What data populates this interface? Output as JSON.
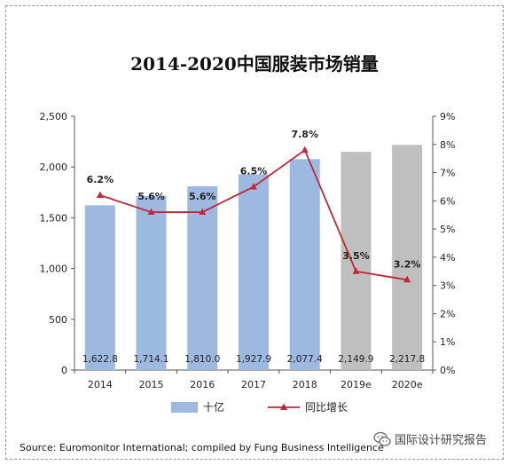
{
  "title": "2014-2020中国服装市场销量",
  "source": "Source: Euromonitor International; compiled by Fung Business Intelligence",
  "watermark": "国际设计研究报告",
  "chart_data": {
    "type": "bar",
    "categories": [
      "2014",
      "2015",
      "2016",
      "2017",
      "2018",
      "2019e",
      "2020e"
    ],
    "series": [
      {
        "name": "十亿",
        "type": "bar",
        "axis": "left",
        "values": [
          1622.8,
          1714.1,
          1810.0,
          1927.9,
          2077.4,
          2149.9,
          2217.8
        ],
        "labels": [
          "1,622.8",
          "1,714.1",
          "1,810.0",
          "1,927.9",
          "2,077.4",
          "2,149.9",
          "2,217.8"
        ],
        "colors": [
          "#9db9e0",
          "#9db9e0",
          "#9db9e0",
          "#9db9e0",
          "#9db9e0",
          "#bfbfbf",
          "#bfbfbf"
        ]
      },
      {
        "name": "同比增长",
        "type": "line",
        "axis": "right",
        "values": [
          6.2,
          5.6,
          5.6,
          6.5,
          7.8,
          3.5,
          3.2
        ],
        "labels": [
          "6.2%",
          "5.6%",
          "5.6%",
          "6.5%",
          "7.8%",
          "3.5%",
          "3.2%"
        ],
        "color": "#c0283a"
      }
    ],
    "ylim": [
      0,
      2500
    ],
    "yticks": [
      "0",
      "500",
      "1,000",
      "1,500",
      "2,000",
      "2,500"
    ],
    "ylim_right": [
      0,
      9
    ],
    "yticks_right": [
      "0%",
      "1%",
      "2%",
      "3%",
      "4%",
      "5%",
      "6%",
      "7%",
      "8%",
      "9%"
    ],
    "grid": false,
    "legend_position": "bottom"
  }
}
